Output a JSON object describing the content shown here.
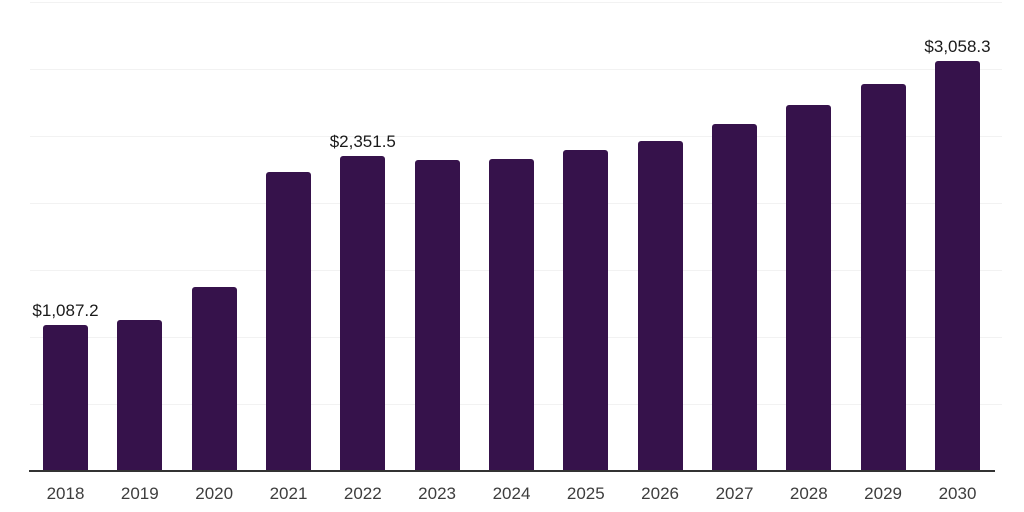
{
  "chart_data": {
    "type": "bar",
    "title": "",
    "xlabel": "",
    "ylabel": "",
    "categories": [
      "2018",
      "2019",
      "2020",
      "2021",
      "2022",
      "2023",
      "2024",
      "2025",
      "2026",
      "2027",
      "2028",
      "2029",
      "2030"
    ],
    "values": [
      1087.2,
      1125,
      1372,
      2230,
      2351.5,
      2320,
      2328,
      2398,
      2465,
      2590,
      2735,
      2888,
      3058.3
    ],
    "value_labels": {
      "0": "$1,087.2",
      "4": "$2,351.5",
      "12": "$3,058.3"
    },
    "ylim": [
      0,
      3500
    ],
    "gridline_step": 500,
    "grid": true,
    "legend": false,
    "y_axis_tick_labels_shown": false
  },
  "colors": {
    "bar": "#36124B",
    "gridline": "#F2F2F2",
    "axis": "#333333",
    "tick_label": "#3D3D3D",
    "value_label": "#1A1A1A",
    "background": "#FFFFFF"
  }
}
